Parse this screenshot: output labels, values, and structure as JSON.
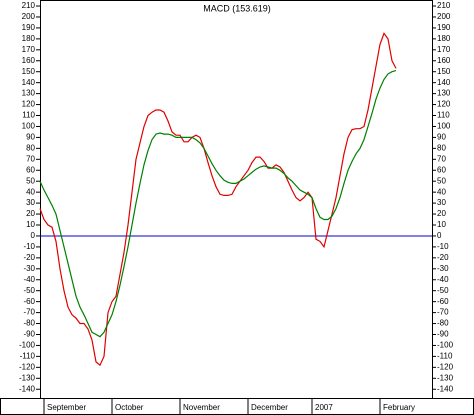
{
  "chart_data": {
    "type": "line",
    "title": "MACD (153.619)",
    "xlim": [
      0,
      98
    ],
    "xticks": [
      {
        "value": 1,
        "label": "September"
      },
      {
        "value": 18,
        "label": "October"
      },
      {
        "value": 35,
        "label": "November"
      },
      {
        "value": 52,
        "label": "December"
      },
      {
        "value": 68,
        "label": "2007"
      },
      {
        "value": 85,
        "label": "February"
      }
    ],
    "ylim": [
      -148,
      215.5
    ],
    "yticks": [
      -140,
      -130,
      -120,
      -110,
      -100,
      -90,
      -80,
      -70,
      -60,
      -50,
      -40,
      -30,
      -20,
      -10,
      0,
      10,
      20,
      30,
      40,
      50,
      60,
      70,
      80,
      90,
      100,
      110,
      120,
      130,
      140,
      150,
      160,
      170,
      180,
      190,
      200,
      210
    ],
    "reference_line": {
      "value": 0,
      "color": "#0000cc"
    },
    "series": [
      {
        "color": "#e00000",
        "values": [
          25,
          15,
          10,
          8,
          -5,
          -30,
          -50,
          -65,
          -72,
          -75,
          -80,
          -80,
          -85,
          -95,
          -115,
          -118,
          -110,
          -70,
          -60,
          -55,
          -35,
          -15,
          10,
          40,
          70,
          85,
          100,
          110,
          113,
          115,
          115,
          113,
          105,
          95,
          92,
          92,
          86,
          86,
          90,
          92,
          90,
          80,
          67,
          55,
          45,
          38,
          37,
          37,
          38,
          45,
          50,
          55,
          60,
          67,
          72,
          72,
          68,
          62,
          62,
          65,
          63,
          58,
          50,
          42,
          35,
          32,
          35,
          40,
          35,
          -3,
          -5,
          -10,
          5,
          20,
          35,
          55,
          75,
          90,
          97,
          98,
          98,
          100,
          115,
          135,
          155,
          175,
          185,
          180,
          160,
          153
        ]
      },
      {
        "color": "#008000",
        "values": [
          50,
          42,
          35,
          28,
          20,
          5,
          -10,
          -25,
          -40,
          -55,
          -65,
          -72,
          -80,
          -88,
          -90,
          -92,
          -88,
          -80,
          -72,
          -60,
          -45,
          -28,
          -10,
          10,
          30,
          48,
          65,
          78,
          88,
          93,
          94,
          93,
          93,
          92,
          90,
          90,
          90,
          90,
          90,
          88,
          85,
          80,
          73,
          66,
          60,
          55,
          51,
          49,
          48,
          48,
          50,
          52,
          55,
          58,
          61,
          63,
          64,
          63,
          62,
          62,
          60,
          57,
          53,
          50,
          46,
          42,
          40,
          38,
          35,
          25,
          17,
          15,
          15,
          18,
          25,
          35,
          48,
          60,
          68,
          75,
          80,
          88,
          100,
          112,
          125,
          135,
          143,
          148,
          150,
          151
        ]
      }
    ]
  }
}
